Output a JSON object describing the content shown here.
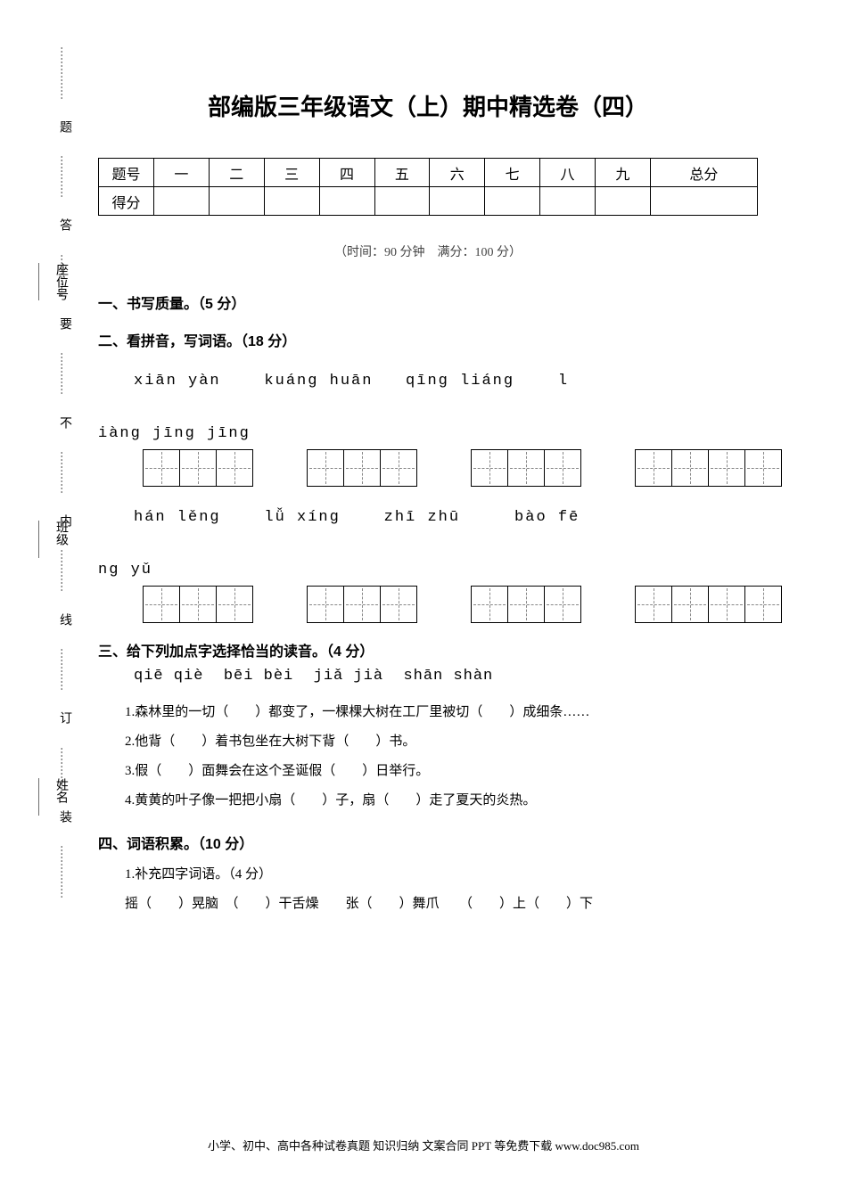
{
  "binding": {
    "outer": [
      {
        "label": "姓名",
        "has_blank": true
      },
      {
        "label": "班级",
        "has_blank": true
      },
      {
        "label": "座位号",
        "has_blank": true
      }
    ],
    "inner": {
      "segments": [
        {
          "dots": "……………",
          "char": "装"
        },
        {
          "dots": "…………",
          "char": "订"
        },
        {
          "dots": "…………",
          "char": "线"
        },
        {
          "dots": "…………",
          "char": "内"
        },
        {
          "dots": "…………",
          "char": "不"
        },
        {
          "dots": "…………",
          "char": "要"
        },
        {
          "dots": "…………",
          "char": "答"
        },
        {
          "dots": "…………",
          "char": "题"
        },
        {
          "dots": "……………",
          "char": ""
        }
      ]
    }
  },
  "title": "部编版三年级语文（上）期中精选卷（四）",
  "score_table": {
    "row_labels": [
      "题号",
      "得分"
    ],
    "cols": [
      "一",
      "二",
      "三",
      "四",
      "五",
      "六",
      "七",
      "八",
      "九",
      "总分"
    ]
  },
  "time_info": "（时间：90 分钟　满分：100 分）",
  "sections": {
    "s1": {
      "heading": "一、书写质量。（5 分）"
    },
    "s2": {
      "heading": "二、看拼音，写词语。（18 分）",
      "row1": {
        "pinyin_line": "xiān yàn    kuáng huān   qīng liáng    l",
        "pinyin_cont": "iàng jīng jīng",
        "box_groups": [
          3,
          3,
          3,
          4
        ]
      },
      "row2": {
        "pinyin_line": "hán lěng    lǚ xíng    zhī zhū     bào fē",
        "pinyin_cont": "ng yǔ",
        "box_groups": [
          3,
          3,
          3,
          4
        ]
      }
    },
    "s3": {
      "heading": "三、给下列加点字选择恰当的读音。（4 分）",
      "choices": "qiē qiè  bēi bèi  jiǎ jià  shān shàn",
      "items": [
        {
          "num": "1.",
          "parts": [
            "森林里的一",
            {
              "dot": "切"
            },
            "（　　）都变了，一棵棵大树在工厂里被",
            {
              "dot": "切"
            },
            "（　　）成细条……"
          ]
        },
        {
          "num": "2.",
          "parts": [
            "他",
            {
              "dot": "背"
            },
            "（　　）着书包坐在大树下",
            {
              "dot": "背"
            },
            "（　　）书。"
          ]
        },
        {
          "num": "3.",
          "parts": [
            {
              "dot": "假"
            },
            "（　　）面舞会在这个圣诞",
            {
              "dot": "假"
            },
            "（　　）日举行。"
          ]
        },
        {
          "num": "4.",
          "parts": [
            "黄黄的叶子像一把把小",
            {
              "dot": "扇"
            },
            "（　　）子，",
            {
              "dot": "扇"
            },
            "（　　）走了夏天的炎热。"
          ]
        }
      ]
    },
    "s4": {
      "heading": "四、词语积累。（10 分）",
      "sub": "1.补充四字词语。（4 分）",
      "line": "摇（　　）晃脑　（　　）干舌燥　　张（　　）舞爪　　（　　）上（　　）下"
    }
  },
  "footer": "小学、初中、高中各种试卷真题 知识归纳 文案合同 PPT 等免费下载  www.doc985.com"
}
